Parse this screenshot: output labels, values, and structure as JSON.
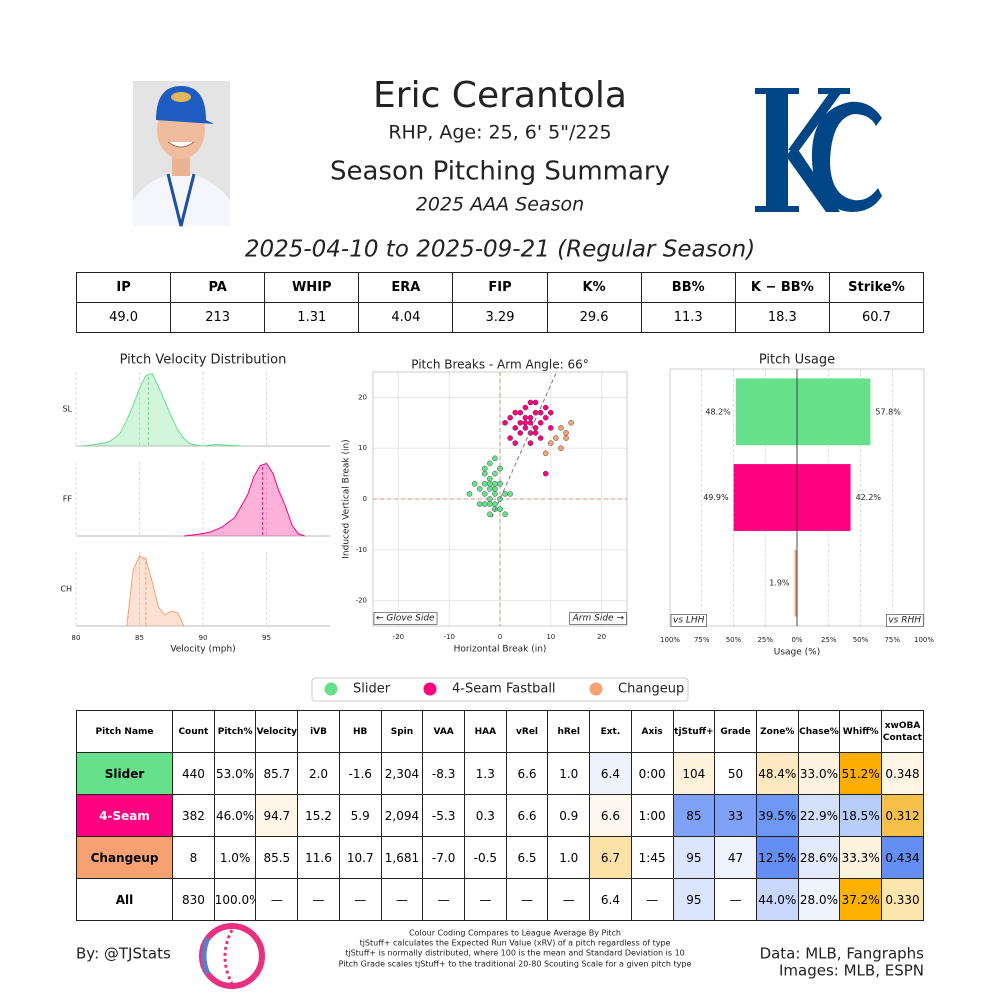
{
  "header": {
    "name": "Eric Cerantola",
    "bio": "RHP, Age: 25, 6' 5\"/225",
    "subtitle": "Season Pitching Summary",
    "season": "2025 AAA Season",
    "date_range": "2025-04-10 to 2025-09-21 (Regular Season)"
  },
  "stats_table": {
    "columns": [
      "IP",
      "PA",
      "WHIP",
      "ERA",
      "FIP",
      "K%",
      "BB%",
      "K − BB%",
      "Strike%"
    ],
    "values": [
      "49.0",
      "213",
      "1.31",
      "4.04",
      "3.29",
      "29.6",
      "11.3",
      "18.3",
      "60.7"
    ]
  },
  "chart_data": [
    {
      "type": "density",
      "title": "Pitch Velocity Distribution",
      "xlabel": "Velocity (mph)",
      "xlim": [
        80,
        100
      ],
      "xticks": [
        80,
        85,
        90,
        95
      ],
      "ylim": [
        0,
        1
      ],
      "grid": true,
      "series": [
        {
          "name": "SL",
          "color": "#66e08a",
          "mean": 85.7,
          "x": [
            80.5,
            81.5,
            82.5,
            83,
            83.5,
            84,
            84.5,
            85,
            85.5,
            86,
            86.5,
            87,
            87.5,
            88,
            88.5,
            89,
            89.5,
            90,
            91,
            92,
            93
          ],
          "values": [
            0,
            0.02,
            0.05,
            0.1,
            0.18,
            0.35,
            0.55,
            0.78,
            0.95,
            0.98,
            0.8,
            0.6,
            0.4,
            0.22,
            0.1,
            0.03,
            0.01,
            0,
            0.02,
            0.01,
            0
          ]
        },
        {
          "name": "FF",
          "color": "#ff0080",
          "mean": 94.7,
          "x": [
            88.5,
            89.5,
            90.5,
            91.5,
            92.5,
            93,
            93.5,
            94,
            94.5,
            95,
            95.5,
            96,
            96.5,
            97,
            97.5,
            98
          ],
          "values": [
            0,
            0.02,
            0.05,
            0.12,
            0.25,
            0.4,
            0.55,
            0.8,
            0.95,
            0.98,
            0.85,
            0.6,
            0.4,
            0.15,
            0.03,
            0
          ]
        },
        {
          "name": "CH",
          "color": "#f7a072",
          "mean": 85.5,
          "x": [
            84,
            84.5,
            85,
            85.5,
            86,
            86.5,
            87,
            87.5,
            88,
            88.5
          ],
          "values": [
            0,
            0.75,
            0.95,
            0.9,
            0.6,
            0.25,
            0.15,
            0.2,
            0.18,
            0
          ]
        }
      ]
    },
    {
      "type": "scatter",
      "title": "Pitch Breaks - Arm Angle: 66°",
      "arm_angle": 66,
      "xlabel": "Horizontal Break (in)",
      "ylabel": "Induced Vertical Break (in)",
      "xlim": [
        -25,
        25
      ],
      "ylim": [
        -25,
        25
      ],
      "xticks": [
        -20,
        -10,
        0,
        10,
        20
      ],
      "yticks": [
        -20,
        -10,
        0,
        10,
        20
      ],
      "grid": true,
      "annotations": [
        "← Glove Side",
        "Arm Side →"
      ],
      "series": [
        {
          "name": "Slider",
          "color": "#66e08a",
          "x": [
            -2,
            -1,
            -3,
            0,
            -1,
            -2,
            -4,
            -1,
            0,
            -3,
            -2,
            1,
            -1,
            -5,
            -2,
            -1,
            -3,
            0,
            -2,
            1,
            -3,
            -4,
            -1,
            -2,
            0,
            -6,
            2,
            -1,
            -3,
            -2
          ],
          "values": [
            2,
            3,
            1,
            0,
            -1,
            4,
            2,
            5,
            3,
            -1,
            0,
            1,
            2,
            3,
            7,
            8,
            5,
            -2,
            -3,
            -3,
            3,
            -1,
            1,
            -1,
            6,
            1,
            1,
            -2,
            6,
            3
          ]
        },
        {
          "name": "4-Seam Fastball",
          "color": "#ff0080",
          "x": [
            5,
            6,
            7,
            4,
            8,
            6,
            5,
            3,
            7,
            9,
            6,
            4,
            2,
            8,
            5,
            7,
            3,
            10,
            6,
            1,
            9,
            4,
            7,
            5,
            8,
            2,
            6,
            3,
            10,
            9
          ],
          "values": [
            15,
            16,
            14,
            17,
            15,
            13,
            18,
            14,
            17,
            16,
            15,
            13,
            12,
            12,
            16,
            19,
            17,
            14,
            11,
            15,
            18,
            15,
            13,
            14,
            17,
            16,
            19,
            11,
            17,
            5
          ]
        },
        {
          "name": "Changeup",
          "color": "#f7a072",
          "x": [
            10,
            13,
            12,
            9,
            13,
            11,
            14,
            12
          ],
          "values": [
            11,
            13,
            10,
            9,
            12,
            12,
            15,
            14
          ]
        }
      ]
    },
    {
      "type": "bar",
      "title": "Pitch Usage",
      "xlabel": "Usage (%)",
      "xlim": [
        -100,
        100
      ],
      "xticks": [
        {
          "value": -100,
          "label": "100%"
        },
        {
          "value": -75,
          "label": "75%"
        },
        {
          "value": -50,
          "label": "50%"
        },
        {
          "value": -25,
          "label": "25%"
        },
        {
          "value": 0,
          "label": "0%"
        },
        {
          "value": 25,
          "label": "25%"
        },
        {
          "value": 50,
          "label": "50%"
        },
        {
          "value": 75,
          "label": "75%"
        },
        {
          "value": 100,
          "label": "100%"
        }
      ],
      "grid": true,
      "categories": [
        null,
        null,
        null
      ],
      "colors": [
        "#66e08a",
        "#ff0080",
        "#f7a072"
      ],
      "series": [
        {
          "name": "vs LHH",
          "values": [
            -48.2,
            -49.9,
            -1.9
          ],
          "value_labels": [
            "48.2%",
            "49.9%",
            "1.9%"
          ]
        },
        {
          "name": "vs RHH",
          "values": [
            57.8,
            42.2,
            null
          ],
          "value_labels": [
            "57.8%",
            "42.2%",
            null
          ]
        }
      ]
    }
  ],
  "pitch_table": {
    "columns": [
      "Pitch Name",
      "Count",
      "Pitch%",
      "Velocity",
      "iVB",
      "HB",
      "Spin",
      "VAA",
      "HAA",
      "vRel",
      "hRel",
      "Ext.",
      "Axis",
      "tjStuff+",
      "Grade",
      "Zone%",
      "Chase%",
      "Whiff%",
      "xwOBA Contact"
    ],
    "rows": [
      {
        "cells": [
          "Slider",
          "440",
          "53.0%",
          "85.7",
          "2.0",
          "-1.6",
          "2,304",
          "-8.3",
          "1.3",
          "6.6",
          "1.0",
          "6.4",
          "0:00",
          "104",
          "50",
          "48.4%",
          "33.0%",
          "51.2%",
          "0.348"
        ],
        "colors": [
          "#66e08a",
          null,
          null,
          null,
          null,
          null,
          null,
          null,
          null,
          null,
          null,
          "#eef2fd",
          null,
          "#fdf3dc",
          null,
          "#fde8c2",
          "#fdf2e0",
          "#ffae00",
          "#fdf5e5"
        ]
      },
      {
        "cells": [
          "4-Seam",
          "382",
          "46.0%",
          "94.7",
          "15.2",
          "5.9",
          "2,094",
          "-5.3",
          "0.3",
          "6.6",
          "0.9",
          "6.6",
          "1:00",
          "85",
          "33",
          "39.5%",
          "22.9%",
          "18.5%",
          "0.312"
        ],
        "colors": [
          "#ff0080",
          null,
          null,
          "#fef6e6",
          null,
          null,
          null,
          null,
          null,
          null,
          null,
          "#fdf8f0",
          null,
          "#7fa2f8",
          "#7fa2f8",
          "#6f97f5",
          "#d5e0fb",
          "#b9cdfa",
          "#f7c04a"
        ]
      },
      {
        "cells": [
          "Changeup",
          "8",
          "1.0%",
          "85.5",
          "11.6",
          "10.7",
          "1,681",
          "-7.0",
          "-0.5",
          "6.5",
          "1.0",
          "6.7",
          "1:45",
          "95",
          "47",
          "12.5%",
          "28.6%",
          "33.3%",
          "0.434"
        ],
        "colors": [
          "#f7a072",
          null,
          null,
          null,
          null,
          null,
          null,
          null,
          null,
          null,
          null,
          "#fde2a8",
          null,
          "#dbe5fc",
          "#eef3fe",
          "#648ef4",
          "#e3eafc",
          "#fdf3de",
          "#648ef4"
        ]
      },
      {
        "cells": [
          "All",
          "830",
          "100.0%",
          "—",
          "—",
          "—",
          "—",
          "—",
          "—",
          "—",
          "—",
          "6.4",
          "—",
          "95",
          "—",
          "44.0%",
          "28.0%",
          "37.2%",
          "0.330"
        ],
        "colors": [
          null,
          null,
          null,
          null,
          null,
          null,
          null,
          null,
          null,
          null,
          null,
          null,
          null,
          "#dbe5fc",
          null,
          "#c8d7fb",
          "#eef3fe",
          "#fdb200",
          "#fde6ad"
        ]
      }
    ]
  },
  "footer": {
    "author": "By: @TJStats",
    "notes": [
      "Colour Coding Compares to League Average By Pitch",
      "tjStuff+ calculates the Expected Run Value (xRV) of a pitch regardless of type",
      "tjStuff+ is normally distributed, where 100 is the mean and Standard Deviation is 10",
      "Pitch Grade scales tjStuff+ to the traditional 20-80 Scouting Scale for a given pitch type"
    ],
    "sources": [
      "Data: MLB, Fangraphs",
      "Images: MLB, ESPN"
    ]
  }
}
